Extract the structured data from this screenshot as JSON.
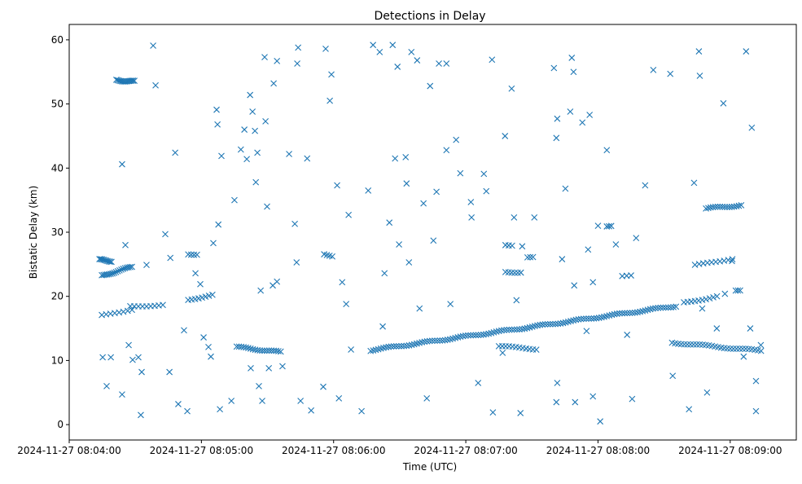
{
  "chart_data": {
    "type": "scatter",
    "title": "Detections in Delay",
    "xlabel": "Time (UTC)",
    "ylabel": "Bistatic Delay (km)",
    "x_units": "seconds after 2024-11-27 08:04:00",
    "xlim": [
      0,
      330
    ],
    "ylim": [
      -2.4,
      62.4
    ],
    "grid": false,
    "marker": "x",
    "color": "#1f77b4",
    "x_ticks": [
      {
        "value": 0,
        "label": "2024-11-27 08:04:00"
      },
      {
        "value": 60,
        "label": "2024-11-27 08:05:00"
      },
      {
        "value": 120,
        "label": "2024-11-27 08:06:00"
      },
      {
        "value": 180,
        "label": "2024-11-27 08:07:00"
      },
      {
        "value": 240,
        "label": "2024-11-27 08:08:00"
      },
      {
        "value": 300,
        "label": "2024-11-27 08:09:00"
      }
    ],
    "y_ticks": [
      {
        "value": 0,
        "label": "0"
      },
      {
        "value": 10,
        "label": "10"
      },
      {
        "value": 20,
        "label": "20"
      },
      {
        "value": 30,
        "label": "30"
      },
      {
        "value": 40,
        "label": "40"
      },
      {
        "value": 50,
        "label": "50"
      },
      {
        "value": 60,
        "label": "60"
      }
    ],
    "tracks": [
      {
        "t": [
          21.4,
          29.6
        ],
        "d": [
          53.7,
          53.5
        ],
        "n": 14
      },
      {
        "t": [
          13.7,
          19.2
        ],
        "d": [
          25.7,
          25.5
        ],
        "n": 10
      },
      {
        "t": [
          14.8,
          28.5
        ],
        "d": [
          23.2,
          24.6
        ],
        "n": 18
      },
      {
        "t": [
          14.8,
          28.5
        ],
        "d": [
          17.0,
          18.0
        ],
        "n": 8
      },
      {
        "t": [
          27.7,
          42.5
        ],
        "d": [
          18.4,
          18.7
        ],
        "n": 9
      },
      {
        "t": [
          54.0,
          65.0
        ],
        "d": [
          19.5,
          20.2
        ],
        "n": 8
      },
      {
        "t": [
          54.0,
          58.0
        ],
        "d": [
          26.6,
          26.6
        ],
        "n": 4
      },
      {
        "t": [
          76.0,
          96.0
        ],
        "d": [
          12.1,
          11.3
        ],
        "n": 20
      },
      {
        "t": [
          115.7,
          119.4
        ],
        "d": [
          26.5,
          26.3
        ],
        "n": 4
      },
      {
        "t": [
          136.8,
          275.4
        ],
        "d": [
          11.6,
          18.5
        ],
        "n": 120
      },
      {
        "t": [
          279.0,
          294.0
        ],
        "d": [
          19.0,
          20.0
        ],
        "n": 10
      },
      {
        "t": [
          273.6,
          314.0
        ],
        "d": [
          12.8,
          11.5
        ],
        "n": 30
      },
      {
        "t": [
          289.0,
          305.0
        ],
        "d": [
          33.7,
          34.2
        ],
        "n": 16
      },
      {
        "t": [
          284.0,
          301.0
        ],
        "d": [
          24.8,
          25.9
        ],
        "n": 10
      },
      {
        "t": [
          198.0,
          205.0
        ],
        "d": [
          23.8,
          23.8
        ],
        "n": 6
      },
      {
        "t": [
          198.0,
          201.0
        ],
        "d": [
          28.0,
          28.0
        ],
        "n": 3
      },
      {
        "t": [
          195.0,
          212.0
        ],
        "d": [
          12.2,
          11.8
        ],
        "n": 12
      },
      {
        "t": [
          208.0,
          210.5
        ],
        "d": [
          26.0,
          26.0
        ],
        "n": 3
      },
      {
        "t": [
          244.0,
          246.0
        ],
        "d": [
          31.0,
          31.0
        ],
        "n": 3
      },
      {
        "t": [
          251.0,
          255.0
        ],
        "d": [
          23.2,
          23.2
        ],
        "n": 3
      },
      {
        "t": [
          302.5,
          304.5
        ],
        "d": [
          20.8,
          20.8
        ],
        "n": 3
      }
    ],
    "points": [
      [
        15.2,
        10.5
      ],
      [
        18.9,
        10.5
      ],
      [
        17.0,
        6.0
      ],
      [
        24.0,
        4.7
      ],
      [
        24.0,
        40.6
      ],
      [
        25.5,
        28.0
      ],
      [
        27.0,
        12.4
      ],
      [
        28.8,
        10.1
      ],
      [
        31.4,
        10.5
      ],
      [
        32.9,
        8.2
      ],
      [
        32.5,
        1.5
      ],
      [
        35.1,
        24.9
      ],
      [
        38.1,
        59.1
      ],
      [
        39.2,
        52.9
      ],
      [
        43.6,
        29.7
      ],
      [
        45.5,
        8.2
      ],
      [
        45.9,
        26.0
      ],
      [
        48.1,
        42.4
      ],
      [
        49.5,
        3.2
      ],
      [
        52.1,
        14.7
      ],
      [
        53.6,
        2.1
      ],
      [
        57.3,
        23.6
      ],
      [
        59.5,
        21.9
      ],
      [
        61.0,
        13.6
      ],
      [
        63.2,
        12.1
      ],
      [
        64.3,
        10.6
      ],
      [
        65.4,
        28.3
      ],
      [
        66.9,
        49.1
      ],
      [
        67.3,
        46.8
      ],
      [
        67.7,
        31.2
      ],
      [
        68.4,
        2.4
      ],
      [
        69.1,
        41.9
      ],
      [
        73.6,
        3.7
      ],
      [
        75.0,
        35.0
      ],
      [
        77.9,
        42.9
      ],
      [
        79.5,
        46.0
      ],
      [
        80.6,
        41.4
      ],
      [
        82.1,
        51.4
      ],
      [
        82.4,
        8.8
      ],
      [
        83.2,
        48.8
      ],
      [
        84.3,
        45.8
      ],
      [
        84.7,
        37.8
      ],
      [
        85.4,
        42.4
      ],
      [
        86.1,
        6.0
      ],
      [
        86.9,
        20.9
      ],
      [
        87.6,
        3.7
      ],
      [
        88.7,
        57.3
      ],
      [
        89.1,
        47.3
      ],
      [
        89.8,
        34.0
      ],
      [
        90.6,
        8.8
      ],
      [
        92.4,
        21.7
      ],
      [
        92.8,
        53.2
      ],
      [
        94.3,
        56.7
      ],
      [
        94.3,
        22.3
      ],
      [
        96.8,
        9.1
      ],
      [
        99.8,
        42.2
      ],
      [
        102.4,
        31.3
      ],
      [
        103.2,
        25.3
      ],
      [
        103.5,
        56.3
      ],
      [
        103.9,
        58.8
      ],
      [
        105.0,
        3.7
      ],
      [
        108.0,
        41.5
      ],
      [
        109.8,
        2.2
      ],
      [
        115.3,
        5.9
      ],
      [
        116.4,
        58.6
      ],
      [
        118.3,
        50.5
      ],
      [
        119.0,
        54.6
      ],
      [
        121.6,
        37.3
      ],
      [
        123.9,
        22.2
      ],
      [
        122.4,
        4.1
      ],
      [
        125.7,
        18.8
      ],
      [
        126.8,
        32.7
      ],
      [
        127.9,
        11.7
      ],
      [
        132.7,
        2.1
      ],
      [
        135.7,
        36.5
      ],
      [
        137.9,
        59.2
      ],
      [
        140.9,
        58.1
      ],
      [
        142.3,
        15.3
      ],
      [
        143.1,
        23.6
      ],
      [
        145.3,
        31.5
      ],
      [
        146.8,
        59.2
      ],
      [
        147.9,
        41.5
      ],
      [
        149.0,
        55.8
      ],
      [
        149.7,
        28.1
      ],
      [
        152.7,
        41.7
      ],
      [
        153.1,
        37.6
      ],
      [
        154.2,
        25.3
      ],
      [
        155.3,
        58.1
      ],
      [
        157.9,
        56.8
      ],
      [
        159.0,
        18.1
      ],
      [
        160.8,
        34.5
      ],
      [
        162.3,
        4.1
      ],
      [
        163.8,
        52.8
      ],
      [
        165.3,
        28.7
      ],
      [
        166.7,
        36.3
      ],
      [
        167.8,
        56.3
      ],
      [
        171.2,
        56.3
      ],
      [
        171.2,
        42.8
      ],
      [
        173.0,
        18.8
      ],
      [
        175.6,
        44.4
      ],
      [
        177.5,
        39.2
      ],
      [
        182.3,
        34.7
      ],
      [
        182.6,
        32.3
      ],
      [
        185.6,
        6.5
      ],
      [
        188.2,
        39.1
      ],
      [
        189.3,
        36.4
      ],
      [
        191.9,
        56.9
      ],
      [
        192.3,
        1.9
      ],
      [
        196.7,
        11.2
      ],
      [
        197.8,
        45.0
      ],
      [
        200.8,
        52.4
      ],
      [
        201.9,
        32.3
      ],
      [
        203.0,
        19.4
      ],
      [
        204.8,
        1.8
      ],
      [
        205.6,
        27.8
      ],
      [
        211.1,
        32.3
      ],
      [
        220.0,
        55.6
      ],
      [
        221.1,
        44.7
      ],
      [
        221.1,
        3.5
      ],
      [
        221.5,
        47.7
      ],
      [
        221.5,
        6.5
      ],
      [
        223.7,
        25.8
      ],
      [
        225.2,
        36.8
      ],
      [
        227.4,
        48.8
      ],
      [
        228.1,
        57.2
      ],
      [
        228.9,
        55.0
      ],
      [
        229.2,
        21.7
      ],
      [
        229.6,
        3.5
      ],
      [
        232.9,
        47.1
      ],
      [
        234.8,
        14.6
      ],
      [
        235.5,
        27.3
      ],
      [
        236.2,
        48.3
      ],
      [
        237.7,
        4.4
      ],
      [
        237.7,
        22.2
      ],
      [
        240.0,
        31.0
      ],
      [
        241.0,
        0.5
      ],
      [
        244.0,
        42.8
      ],
      [
        248.1,
        28.1
      ],
      [
        253.2,
        14.0
      ],
      [
        255.5,
        4.0
      ],
      [
        257.3,
        29.1
      ],
      [
        261.4,
        37.3
      ],
      [
        265.1,
        55.3
      ],
      [
        272.8,
        54.7
      ],
      [
        273.9,
        7.6
      ],
      [
        281.3,
        2.4
      ],
      [
        283.6,
        37.7
      ],
      [
        285.8,
        58.2
      ],
      [
        286.2,
        54.4
      ],
      [
        287.3,
        18.1
      ],
      [
        289.5,
        5.0
      ],
      [
        293.9,
        15.0
      ],
      [
        296.9,
        50.1
      ],
      [
        297.6,
        20.4
      ],
      [
        300.8,
        25.5
      ],
      [
        306.1,
        10.6
      ],
      [
        307.2,
        58.2
      ],
      [
        309.1,
        15.0
      ],
      [
        309.8,
        46.3
      ],
      [
        311.7,
        6.8
      ],
      [
        311.7,
        2.1
      ],
      [
        313.9,
        12.4
      ]
    ]
  }
}
